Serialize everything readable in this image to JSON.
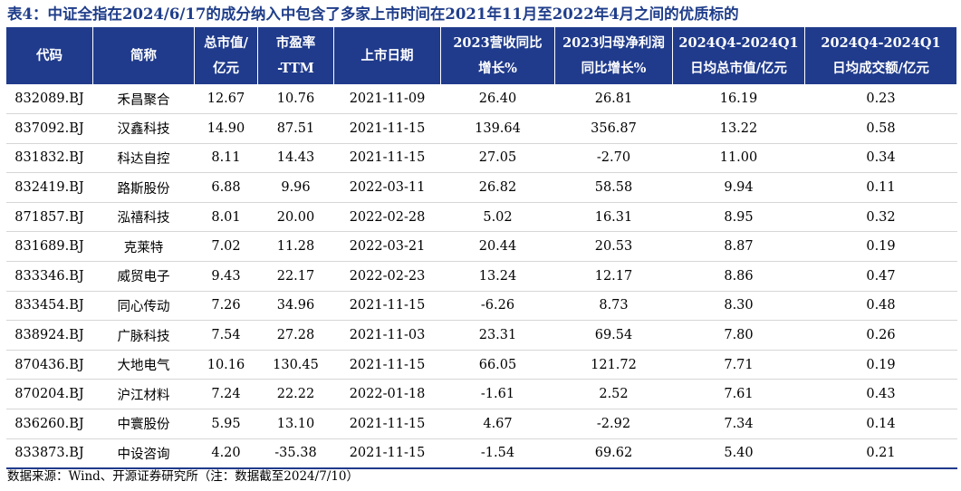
{
  "title": "表4：中证全指在2024/6/17的成分纳入中包含了多家上市时间在2021年11月至2022年4月之间的优质标的",
  "table": {
    "headers": [
      [
        "代码"
      ],
      [
        "简称"
      ],
      [
        "总市值/",
        "亿元"
      ],
      [
        "市盈率",
        "-TTM"
      ],
      [
        "上市日期"
      ],
      [
        "2023营收同比",
        "增长%"
      ],
      [
        "2023归母净利润",
        "同比增长%"
      ],
      [
        "2024Q4-2024Q1",
        "日均总市值/亿元"
      ],
      [
        "2024Q4-2024Q1",
        "日均成交额/亿元"
      ]
    ],
    "rows": [
      [
        "832089.BJ",
        "禾昌聚合",
        "12.67",
        "10.76",
        "2021-11-09",
        "26.40",
        "26.81",
        "16.19",
        "0.23"
      ],
      [
        "837092.BJ",
        "汉鑫科技",
        "14.90",
        "87.51",
        "2021-11-15",
        "139.64",
        "356.87",
        "13.22",
        "0.58"
      ],
      [
        "831832.BJ",
        "科达自控",
        "8.11",
        "14.43",
        "2021-11-15",
        "27.05",
        "-2.70",
        "11.00",
        "0.34"
      ],
      [
        "832419.BJ",
        "路斯股份",
        "6.88",
        "9.96",
        "2022-03-11",
        "26.82",
        "58.58",
        "9.94",
        "0.11"
      ],
      [
        "871857.BJ",
        "泓禧科技",
        "8.01",
        "20.00",
        "2022-02-28",
        "5.02",
        "16.31",
        "8.95",
        "0.32"
      ],
      [
        "831689.BJ",
        "克莱特",
        "7.02",
        "11.28",
        "2022-03-21",
        "20.44",
        "20.53",
        "8.87",
        "0.19"
      ],
      [
        "833346.BJ",
        "威贸电子",
        "9.43",
        "22.17",
        "2022-02-23",
        "13.24",
        "12.17",
        "8.86",
        "0.47"
      ],
      [
        "833454.BJ",
        "同心传动",
        "7.26",
        "34.96",
        "2021-11-15",
        "-6.26",
        "8.73",
        "8.30",
        "0.48"
      ],
      [
        "838924.BJ",
        "广脉科技",
        "7.54",
        "27.28",
        "2021-11-03",
        "23.31",
        "69.54",
        "7.80",
        "0.26"
      ],
      [
        "870436.BJ",
        "大地电气",
        "10.16",
        "130.45",
        "2021-11-15",
        "66.05",
        "121.72",
        "7.71",
        "0.19"
      ],
      [
        "870204.BJ",
        "沪江材料",
        "7.24",
        "22.22",
        "2022-01-18",
        "-1.61",
        "2.52",
        "7.61",
        "0.43"
      ],
      [
        "836260.BJ",
        "中寰股份",
        "5.95",
        "13.10",
        "2021-11-15",
        "4.67",
        "-2.92",
        "7.34",
        "0.14"
      ],
      [
        "833873.BJ",
        "中设咨询",
        "4.20",
        "-35.38",
        "2021-11-15",
        "-1.54",
        "69.62",
        "5.40",
        "0.21"
      ]
    ]
  },
  "source": "数据来源：Wind、开源证券研究所（注：数据截至2024/7/10）"
}
